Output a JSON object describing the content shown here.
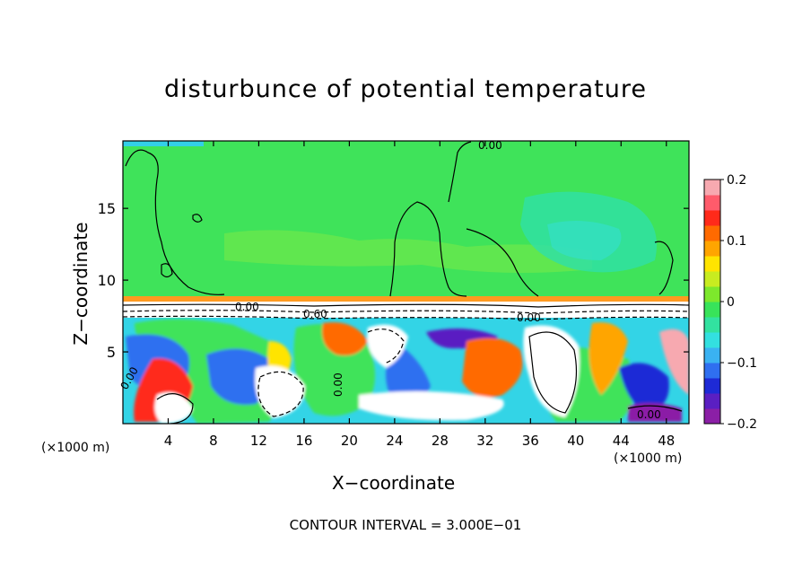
{
  "chart_data": {
    "type": "heatmap",
    "title": "disturbunce of potential temperature",
    "xlabel": "X−coordinate",
    "ylabel": "Z−coordinate",
    "x_unit": "(×1000 m)",
    "x_ticks": [
      4,
      8,
      12,
      16,
      20,
      24,
      28,
      32,
      36,
      40,
      44,
      48
    ],
    "y_ticks": [
      5,
      10,
      15
    ],
    "xlim": [
      0,
      50
    ],
    "ylim": [
      0,
      19.7
    ],
    "colorbar": {
      "ticks": [
        {
          "value": 0.2,
          "label": "0.2"
        },
        {
          "value": 0.1,
          "label": "0.1"
        },
        {
          "value": 0,
          "label": "0"
        },
        {
          "value": -0.1,
          "label": "−0.1"
        },
        {
          "value": -0.2,
          "label": "−0.2"
        }
      ],
      "range": [
        -0.2,
        0.2
      ],
      "colors": [
        "#8b1fa6",
        "#5a1fc2",
        "#1e2ad6",
        "#2f6ff0",
        "#3ab2f2",
        "#33e0e0",
        "#32e2a0",
        "#38e35a",
        "#7de82c",
        "#c8ec20",
        "#ffe400",
        "#ffa500",
        "#ff6a00",
        "#ff2a1a",
        "#ff5b6b",
        "#f7a9b0"
      ]
    },
    "contour_labels": [
      "0.00",
      "0.00",
      "0.00",
      "0.60",
      "0.00",
      "0.00",
      "0.00"
    ],
    "footer": "CONTOUR INTERVAL = 3.000E−01"
  }
}
